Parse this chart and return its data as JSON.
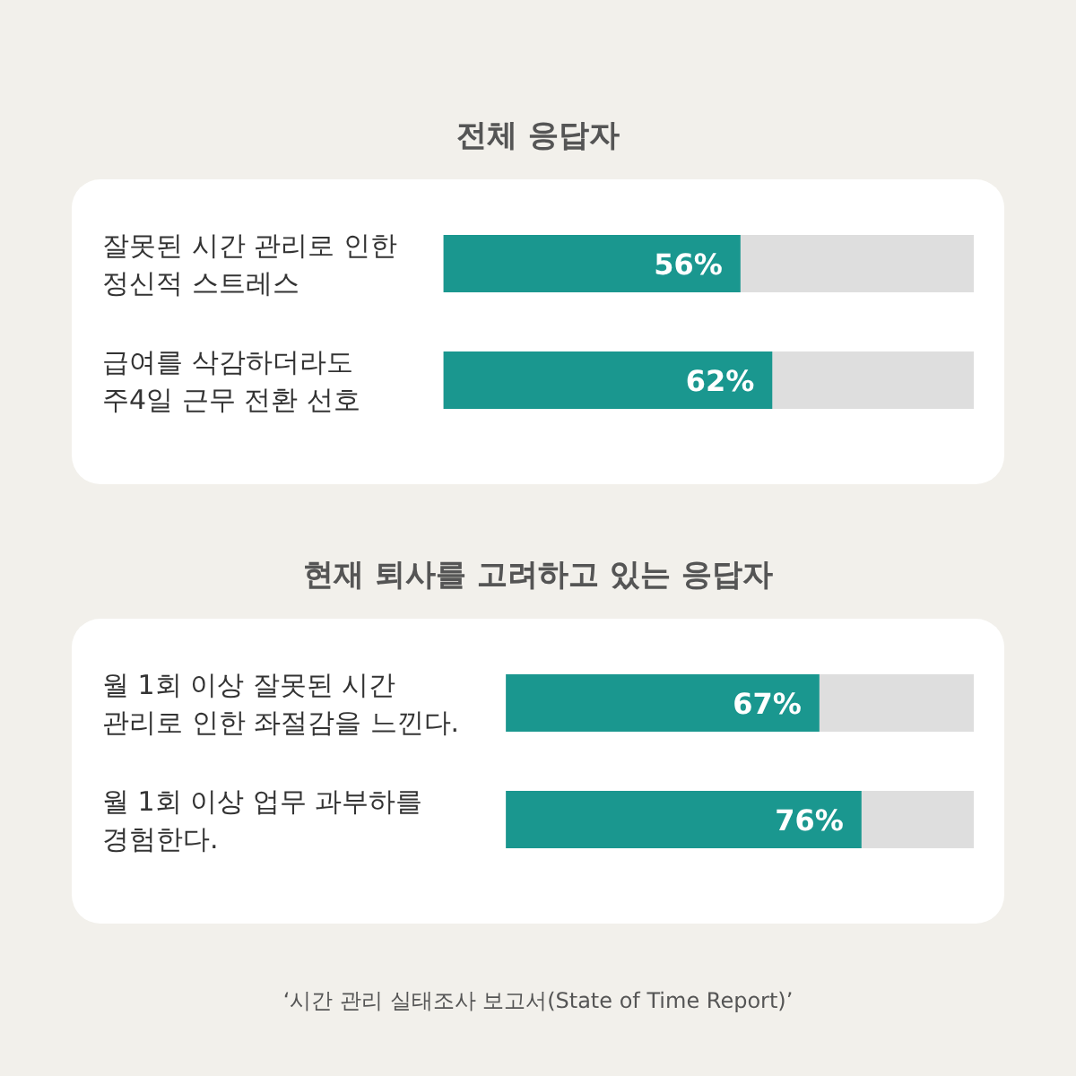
{
  "chart_data": [
    {
      "type": "bar",
      "orientation": "horizontal",
      "title": "전체 응답자",
      "categories": [
        "잘못된 시간 관리로 인한\n정신적 스트레스",
        "급여를 삭감하더라도\n주4일 근무 전환 선호"
      ],
      "values": [
        56,
        62
      ],
      "value_labels": [
        "56%",
        "62%"
      ],
      "color": "#1a978f",
      "xlim": [
        0,
        100
      ]
    },
    {
      "type": "bar",
      "orientation": "horizontal",
      "title": "현재 퇴사를 고려하고 있는 응답자",
      "categories": [
        "월 1회 이상 잘못된 시간\n관리로 인한 좌절감을 느낀다.",
        "월 1회 이상 업무 과부하를\n경험한다."
      ],
      "values": [
        67,
        76
      ],
      "value_labels": [
        "67%",
        "76%"
      ],
      "color": "#1a978f",
      "xlim": [
        0,
        100
      ],
      "annotations": [
        "‘시간 관리 실태조사 보고서(State of Time Report)’"
      ]
    }
  ]
}
